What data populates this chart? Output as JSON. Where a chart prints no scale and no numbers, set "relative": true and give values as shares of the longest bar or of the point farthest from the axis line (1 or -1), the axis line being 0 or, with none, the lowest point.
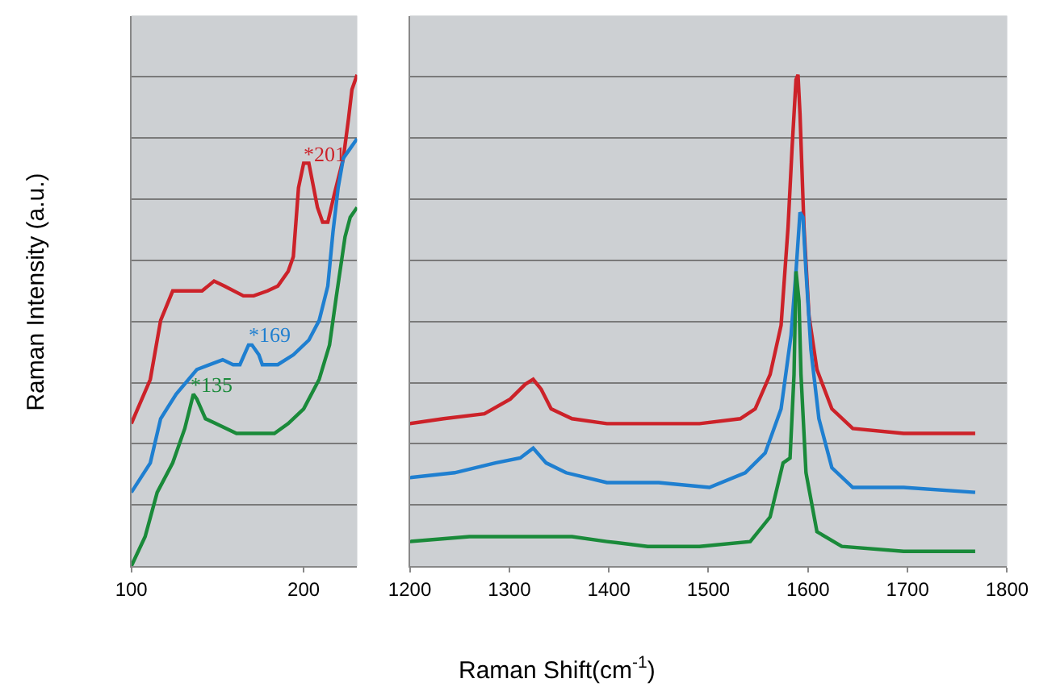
{
  "chart_data": [
    {
      "type": "line",
      "relative": true,
      "ylabel": "Raman Intensity (a.u.)",
      "xlim": [
        100,
        231
      ],
      "xticks": [
        100,
        200
      ],
      "grid": "y",
      "marker": "none",
      "line_style": "solid",
      "series": [
        {
          "color": "#cc2229",
          "x": [
            100,
            111,
            117,
            124,
            129,
            141,
            148,
            154,
            165,
            171,
            179,
            185,
            191,
            194,
            197,
            200,
            203,
            208,
            211,
            214,
            218,
            223,
            226,
            228,
            231
          ],
          "values": [
            0.29,
            0.38,
            0.5,
            0.56,
            0.56,
            0.56,
            0.58,
            0.57,
            0.55,
            0.55,
            0.56,
            0.57,
            0.6,
            0.63,
            0.77,
            0.82,
            0.82,
            0.73,
            0.7,
            0.7,
            0.76,
            0.83,
            0.91,
            0.97,
            1
          ]
        },
        {
          "color": "#1f7fd0",
          "x": [
            100,
            111,
            117,
            126,
            138,
            153,
            159,
            163,
            168,
            170,
            174,
            176,
            185,
            194,
            203,
            209,
            214,
            217,
            220,
            223,
            227,
            231
          ],
          "values": [
            0.15,
            0.21,
            0.3,
            0.35,
            0.4,
            0.42,
            0.41,
            0.41,
            0.45,
            0.45,
            0.43,
            0.41,
            0.41,
            0.43,
            0.46,
            0.5,
            0.57,
            0.68,
            0.77,
            0.83,
            0.85,
            0.87
          ]
        },
        {
          "color": "#1a8a3a",
          "x": [
            100,
            108,
            115,
            124,
            131,
            136,
            138,
            143,
            149,
            161,
            174,
            183,
            191,
            200,
            209,
            215,
            219,
            224,
            227,
            231
          ],
          "values": [
            0,
            0.06,
            0.15,
            0.21,
            0.28,
            0.35,
            0.34,
            0.3,
            0.29,
            0.27,
            0.27,
            0.27,
            0.29,
            0.32,
            0.38,
            0.45,
            0.55,
            0.67,
            0.71,
            0.73
          ]
        }
      ],
      "annotations": [
        {
          "text": "*201",
          "x": 201,
          "y": 0.82
        },
        {
          "text": "*169",
          "x": 169,
          "y": 0.45
        },
        {
          "text": "*135",
          "x": 135,
          "y": 0.35
        }
      ]
    },
    {
      "type": "line",
      "relative": true,
      "xlabel": "Raman Shift(cm$^{-1}$)",
      "xlim": [
        1200,
        1800
      ],
      "xticks": [
        1200,
        1300,
        1400,
        1500,
        1600,
        1700,
        1800
      ],
      "grid": "y",
      "marker": "none",
      "line_style": "solid",
      "series": [
        {
          "color": "#cc2229",
          "x": [
            1200,
            1234,
            1275,
            1301,
            1316,
            1324,
            1332,
            1342,
            1363,
            1398,
            1439,
            1491,
            1532,
            1547,
            1562,
            1573,
            1580,
            1584,
            1588,
            1590,
            1592,
            1596,
            1601,
            1609,
            1624,
            1645,
            1696,
            1768
          ],
          "values": [
            0.29,
            0.3,
            0.31,
            0.34,
            0.37,
            0.38,
            0.36,
            0.32,
            0.3,
            0.29,
            0.29,
            0.29,
            0.3,
            0.32,
            0.39,
            0.49,
            0.69,
            0.85,
            0.99,
            1,
            0.92,
            0.69,
            0.51,
            0.4,
            0.32,
            0.28,
            0.27,
            0.27
          ]
        },
        {
          "color": "#1f7fd0",
          "x": [
            1200,
            1245,
            1286,
            1311,
            1324,
            1337,
            1357,
            1398,
            1450,
            1501,
            1537,
            1557,
            1573,
            1583,
            1588,
            1592,
            1595,
            1598,
            1603,
            1611,
            1624,
            1645,
            1696,
            1768
          ],
          "values": [
            0.18,
            0.19,
            0.21,
            0.22,
            0.24,
            0.21,
            0.19,
            0.17,
            0.17,
            0.16,
            0.19,
            0.23,
            0.32,
            0.47,
            0.6,
            0.72,
            0.71,
            0.6,
            0.44,
            0.3,
            0.2,
            0.16,
            0.16,
            0.15
          ]
        },
        {
          "color": "#1a8a3a",
          "x": [
            1200,
            1260,
            1286,
            1324,
            1363,
            1398,
            1439,
            1491,
            1542,
            1562,
            1575,
            1582,
            1586,
            1588,
            1591,
            1593,
            1598,
            1609,
            1634,
            1696,
            1768
          ],
          "values": [
            0.05,
            0.06,
            0.06,
            0.06,
            0.06,
            0.05,
            0.04,
            0.04,
            0.05,
            0.1,
            0.21,
            0.22,
            0.39,
            0.6,
            0.54,
            0.39,
            0.19,
            0.07,
            0.04,
            0.03,
            0.03
          ]
        }
      ]
    }
  ]
}
